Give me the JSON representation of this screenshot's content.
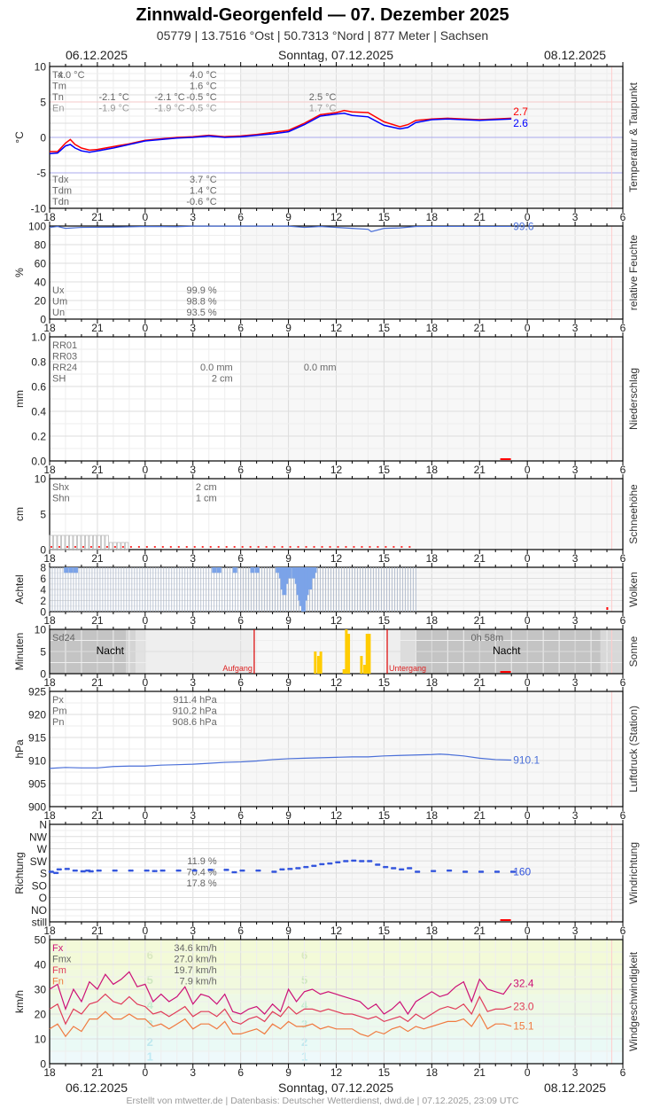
{
  "header": {
    "title": "Zinnwald-Georgenfeld  —  07. Dezember 2025",
    "subtitle": "05779  |  13.7516 °Ost  |  50.7313 °Nord  |  877 Meter  |  Sachsen"
  },
  "dates": {
    "left": "06.12.2025",
    "center": "Sonntag, 07.12.2025",
    "right": "08.12.2025"
  },
  "footer": "Erstellt von mtwetter.de | Datenbasis: Deutscher Wetterdienst, dwd.de | 07.12.2025, 23:09 UTC",
  "axis": {
    "x_ticks": [
      "18",
      "21",
      "0",
      "3",
      "6",
      "9",
      "12",
      "15",
      "18",
      "21",
      "0",
      "3",
      "6"
    ],
    "hours_span": 36,
    "night_left_end_h": 6,
    "night_right_start_h": 30,
    "now_h": 29.3
  },
  "colors": {
    "temp": "#ff0000",
    "dew": "#0000ff",
    "humidity": "#4a6fd8",
    "pressure": "#4a6fd8",
    "wind_dir": "#3355dd",
    "gust": "#cc1177",
    "wind_mean": "#e03c5a",
    "wind_min": "#f07a40",
    "clouds": "#7ba3e8",
    "sun": "#ffcc00",
    "marker": "#ff0000",
    "label_gray": "#666666"
  },
  "chart_data": [
    {
      "id": "temperature",
      "type": "line",
      "title": "Temperatur & Taupunkt",
      "ylabel": "°C",
      "ylim": [
        -10,
        10
      ],
      "yticks": [
        "10",
        "5",
        "0",
        "-5",
        "-10"
      ],
      "x": [
        18,
        18.5,
        19,
        19.3,
        19.6,
        20,
        20.5,
        21,
        22,
        23,
        0,
        1,
        2,
        3,
        4,
        5,
        6,
        7,
        8,
        9,
        10,
        11,
        12,
        12.5,
        13,
        14,
        15,
        16,
        16.5,
        17,
        18,
        19,
        20,
        21,
        22,
        23
      ],
      "series": [
        {
          "name": "Temperatur",
          "color": "#ff0000",
          "values": [
            -2.0,
            -2.0,
            -0.8,
            -0.3,
            -1.0,
            -1.5,
            -1.8,
            -1.7,
            -1.3,
            -0.9,
            -0.4,
            -0.2,
            0.0,
            0.1,
            0.3,
            0.1,
            0.2,
            0.4,
            0.7,
            1.0,
            2.0,
            3.2,
            3.5,
            3.8,
            3.6,
            3.5,
            2.2,
            1.5,
            1.8,
            2.4,
            2.6,
            2.7,
            2.6,
            2.5,
            2.6,
            2.7
          ]
        },
        {
          "name": "Taupunkt",
          "color": "#0000ff",
          "values": [
            -2.3,
            -2.2,
            -1.2,
            -1.0,
            -1.5,
            -1.9,
            -2.1,
            -1.9,
            -1.5,
            -1.0,
            -0.5,
            -0.3,
            -0.1,
            0.0,
            0.2,
            0.0,
            0.1,
            0.3,
            0.5,
            0.8,
            1.8,
            3.0,
            3.3,
            3.4,
            3.1,
            2.9,
            1.7,
            1.2,
            1.4,
            2.1,
            2.5,
            2.6,
            2.5,
            2.4,
            2.5,
            2.6
          ]
        }
      ],
      "current": [
        {
          "label": "2.7",
          "color": "#ff0000"
        },
        {
          "label": "2.6",
          "color": "#0000ff"
        }
      ],
      "legend_top": [
        "Tx",
        "Tm",
        "Tn",
        "En"
      ],
      "legend_bottom": [
        "Tdx",
        "Tdm",
        "Tdn"
      ],
      "annotations": [
        {
          "text": "-2.1 °C",
          "h": 5,
          "row": 2
        },
        {
          "text": "-1.9 °C",
          "h": 5,
          "row": 3
        },
        {
          "text": "-2.1 °C",
          "h": 8.5,
          "row": 2
        },
        {
          "text": "-1.9 °C",
          "h": 8.5,
          "row": 3
        },
        {
          "text": "4.0 °C",
          "h": 20.2,
          "row": 0
        },
        {
          "text": "4.0 °C",
          "h": 28.5,
          "row": 0
        },
        {
          "text": "1.6 °C",
          "h": 28.5,
          "row": 1
        },
        {
          "text": "-0.5 °C",
          "h": 28.5,
          "row": 2
        },
        {
          "text": "-0.5 °C",
          "h": 28.5,
          "row": 3
        },
        {
          "text": "2.5 °C",
          "h": 36,
          "row": 2
        },
        {
          "text": "1.7 °C",
          "h": 36,
          "row": 3
        },
        {
          "text": "3.7 °C",
          "h": 28.5,
          "row": 9
        },
        {
          "text": "1.4 °C",
          "h": 28.5,
          "row": 10
        },
        {
          "text": "-0.6 °C",
          "h": 28.5,
          "row": 11
        }
      ]
    },
    {
      "id": "humidity",
      "type": "line",
      "title": "relative Feuchte",
      "ylabel": "%",
      "ylim": [
        0,
        100
      ],
      "yticks": [
        "100",
        "80",
        "60",
        "40",
        "20",
        "0"
      ],
      "x": [
        18,
        18.5,
        19,
        20,
        22,
        0,
        2,
        3,
        6,
        9,
        10,
        11,
        12,
        13,
        14,
        14.2,
        15,
        16,
        17,
        18,
        20,
        22,
        23
      ],
      "series": [
        {
          "name": "Feuchte",
          "color": "#4a6fd8",
          "values": [
            98.5,
            99.5,
            97.5,
            98.5,
            98.8,
            99.5,
            99.3,
            99.9,
            99.9,
            99.9,
            98.5,
            99.5,
            98.5,
            97.5,
            96.5,
            94,
            97.5,
            98,
            99.5,
            99.6,
            99.6,
            99.6,
            99.6
          ]
        }
      ],
      "current": [
        {
          "label": "99.6",
          "color": "#4a6fd8"
        }
      ],
      "legend_bottom": [
        "Ux",
        "Um",
        "Un"
      ],
      "annotations": [
        {
          "text": "99.9 %",
          "h": 28.5,
          "row": 0
        },
        {
          "text": "98.8 %",
          "h": 28.5,
          "row": 1
        },
        {
          "text": "93.5 %",
          "h": 28.5,
          "row": 2
        }
      ]
    },
    {
      "id": "precipitation",
      "type": "bar",
      "title": "Niederschlag",
      "ylabel": "mm",
      "ylim": [
        0,
        1.0
      ],
      "yticks": [
        "1.0",
        "0.8",
        "0.6",
        "0.4",
        "0.2",
        "0.0"
      ],
      "values": [],
      "legend_top": [
        "RR01",
        "RR03",
        "RR24",
        "SH"
      ],
      "annotations": [
        {
          "text": "0.0 mm",
          "h": 11.5,
          "row": 2
        },
        {
          "text": "2 cm",
          "h": 11.5,
          "row": 3
        },
        {
          "text": "0.0 mm",
          "h": 36,
          "row": 2
        }
      ]
    },
    {
      "id": "snow_depth",
      "type": "bar",
      "title": "Schneehöhe",
      "ylabel": "cm",
      "ylim": [
        0,
        10
      ],
      "yticks": [
        "10",
        "5",
        "0"
      ],
      "values_note": "2 cm from 18h until 21:45, then 1 cm until 23h",
      "segments": [
        {
          "from_h": 18,
          "to_h": 21.75,
          "value": 2
        },
        {
          "from_h": 21.75,
          "to_h": 23,
          "value": 1
        }
      ],
      "legend_top": [
        "Shx",
        "Shn"
      ],
      "annotations": [
        {
          "text": "2 cm",
          "h": 28.5,
          "row": 0
        },
        {
          "text": "1 cm",
          "h": 28.5,
          "row": 1
        }
      ]
    },
    {
      "id": "clouds",
      "type": "bar",
      "title": "Wolken",
      "ylabel": "Achtel",
      "ylim": [
        0,
        8
      ],
      "yticks": [
        "8",
        "6",
        "4",
        "2",
        "0"
      ],
      "note": "8/8 overcast for most of the period; values in eighths, gaps (blue) show breaks",
      "breaks": [
        {
          "h": 18.9,
          "value": 7
        },
        {
          "h": 19.2,
          "value": 7
        },
        {
          "h": 19.5,
          "value": 7
        },
        {
          "h": 28.2,
          "value": 7
        },
        {
          "h": 28.5,
          "value": 7
        },
        {
          "h": 29.5,
          "value": 7
        },
        {
          "h": 30.6,
          "value": 7
        },
        {
          "h": 30.9,
          "value": 7
        },
        {
          "h": 32.2,
          "value": 7
        },
        {
          "h": 32.4,
          "value": 6
        },
        {
          "h": 32.5,
          "value": 4
        },
        {
          "h": 32.6,
          "value": 3
        },
        {
          "h": 32.7,
          "value": 5
        },
        {
          "h": 32.9,
          "value": 6
        },
        {
          "h": 33.2,
          "value": 6
        },
        {
          "h": 33.4,
          "value": 5
        },
        {
          "h": 33.5,
          "value": 3
        },
        {
          "h": 33.6,
          "value": 2
        },
        {
          "h": 33.7,
          "value": 1
        },
        {
          "h": 33.8,
          "value": 0
        },
        {
          "h": 33.9,
          "value": 2
        },
        {
          "h": 34.0,
          "value": 3
        },
        {
          "h": 34.2,
          "value": 4
        },
        {
          "h": 34.4,
          "value": 6
        },
        {
          "h": 34.5,
          "value": 7
        }
      ]
    },
    {
      "id": "sunshine",
      "type": "bar",
      "title": "Sonne",
      "ylabel": "Minuten",
      "ylim": [
        0,
        10
      ],
      "yticks": [
        "10",
        "5",
        "0"
      ],
      "x": [
        10.6,
        10.8,
        10.95,
        12.4,
        12.55,
        12.7,
        13.5,
        13.7,
        13.85,
        14.0
      ],
      "values": [
        5,
        4,
        5,
        1,
        10,
        9,
        4,
        2,
        9,
        9
      ],
      "sunrise_h": 6.85,
      "sunset_h": 15.2,
      "labels": {
        "night": "Nacht",
        "sunrise": "Aufgang",
        "sunset": "Untergang",
        "sd24": "Sd24",
        "sd24_value": "0h 58m"
      }
    },
    {
      "id": "pressure",
      "type": "line",
      "title": "Luftdruck (Station)",
      "ylabel": "hPa",
      "ylim": [
        900,
        925
      ],
      "yticks": [
        "925",
        "920",
        "915",
        "910",
        "905",
        "900"
      ],
      "x": [
        18,
        19,
        20,
        21,
        22,
        23,
        0,
        1,
        2,
        3,
        4,
        5,
        6,
        7,
        8,
        9,
        10,
        11,
        12,
        13,
        14,
        15,
        16,
        17,
        18,
        18.5,
        19,
        20,
        21,
        22,
        23
      ],
      "series": [
        {
          "name": "Luftdruck",
          "color": "#4a6fd8",
          "values": [
            908.3,
            908.5,
            908.4,
            908.4,
            908.7,
            908.8,
            908.8,
            909.0,
            909.1,
            909.2,
            909.4,
            909.6,
            909.7,
            909.9,
            910.2,
            910.4,
            910.5,
            910.6,
            910.7,
            910.8,
            910.8,
            911.0,
            911.1,
            911.2,
            911.3,
            911.4,
            911.3,
            911.0,
            910.5,
            910.2,
            910.1
          ]
        }
      ],
      "current": [
        {
          "label": "910.1",
          "color": "#4a6fd8"
        }
      ],
      "legend_top": [
        "Px",
        "Pm",
        "Pn"
      ],
      "annotations": [
        {
          "text": "911.4 hPa",
          "h": 28.5,
          "row": 0
        },
        {
          "text": "910.2 hPa",
          "h": 28.5,
          "row": 1
        },
        {
          "text": "908.6 hPa",
          "h": 28.5,
          "row": 2
        }
      ]
    },
    {
      "id": "wind_direction",
      "type": "scatter",
      "title": "Windrichtung",
      "ylabel": "Richtung",
      "categories": [
        "N",
        "NW",
        "W",
        "SW",
        "S",
        "SO",
        "O",
        "NO",
        "still"
      ],
      "y_note": "degrees mapped: N=360 top, NW=315, W=270, SW=225, S=180, SO=135, O=90, NO=45, still=0",
      "x": [
        18,
        18.3,
        18.5,
        19,
        19.5,
        20,
        20.3,
        20.5,
        21,
        22,
        23,
        0,
        0.5,
        1,
        2,
        3,
        4,
        5,
        5.5,
        6,
        7,
        8,
        8.5,
        9,
        9.5,
        10,
        10.5,
        11,
        11.5,
        12,
        12.5,
        13,
        13.5,
        14,
        14.5,
        15,
        15.5,
        16,
        16.5,
        17,
        18,
        19,
        20,
        21,
        22,
        23
      ],
      "values": [
        160,
        155,
        170,
        172,
        165,
        162,
        165,
        162,
        165,
        165,
        165,
        165,
        163,
        165,
        165,
        165,
        168,
        168,
        158,
        165,
        165,
        160,
        170,
        172,
        175,
        180,
        185,
        192,
        195,
        200,
        205,
        207,
        205,
        205,
        190,
        180,
        175,
        170,
        175,
        160,
        163,
        165,
        160,
        160,
        160,
        160
      ],
      "current": [
        {
          "label": "160",
          "color": "#3355dd"
        }
      ],
      "annotations": [
        {
          "text": "11.9 %",
          "h": 28.5,
          "row": 0
        },
        {
          "text": "70.4 %",
          "h": 28.5,
          "row": 1
        },
        {
          "text": "17.8 %",
          "h": 28.5,
          "row": 2
        }
      ]
    },
    {
      "id": "wind_speed",
      "type": "line",
      "title": "Windgeschwindigkeit",
      "ylabel": "km/h",
      "ylim": [
        0,
        50
      ],
      "yticks": [
        "50",
        "40",
        "30",
        "20",
        "10",
        "0"
      ],
      "beaufort_labels": [
        "6",
        "5",
        "4",
        "3",
        "2",
        "1"
      ],
      "x": [
        18,
        18.5,
        19,
        19.5,
        20,
        20.5,
        21,
        21.5,
        22,
        22.5,
        23,
        23.5,
        0,
        0.5,
        1,
        1.5,
        2,
        2.5,
        3,
        3.5,
        4,
        4.5,
        5,
        5.5,
        6,
        6.5,
        7,
        7.5,
        8,
        8.5,
        9,
        9.5,
        10,
        10.5,
        11,
        11.5,
        12,
        12.5,
        13,
        13.5,
        14,
        14.5,
        15,
        15.5,
        16,
        16.5,
        17,
        17.5,
        18,
        18.5,
        19,
        19.5,
        20,
        20.5,
        21,
        21.5,
        22,
        22.5,
        23
      ],
      "series": [
        {
          "name": "Fx",
          "color": "#cc1177",
          "values": [
            30,
            32,
            22,
            30,
            25,
            33,
            30,
            36,
            32,
            34,
            37,
            31,
            32,
            25,
            28,
            25,
            27,
            31,
            24,
            28,
            27,
            24,
            28,
            21,
            20,
            22,
            23,
            20,
            24,
            21,
            30,
            25,
            29,
            30,
            28,
            29,
            28,
            27,
            26,
            25,
            22,
            24,
            20,
            22,
            25,
            20,
            25,
            27,
            29,
            27,
            28,
            31,
            33,
            25,
            34,
            30,
            29,
            28,
            32.4
          ]
        },
        {
          "name": "Fm",
          "color": "#e03c5a",
          "values": [
            22,
            24,
            16,
            22,
            20,
            24,
            25,
            28,
            25,
            24,
            27,
            24,
            23,
            20,
            21,
            19,
            21,
            23,
            19,
            21,
            21,
            19,
            22,
            17,
            16,
            18,
            19,
            17,
            21,
            19,
            23,
            20,
            22,
            22,
            21,
            22,
            21,
            20,
            20,
            19,
            18,
            19,
            17,
            18,
            19,
            17,
            20,
            18,
            20,
            22,
            23,
            22,
            24,
            20,
            27,
            21,
            22,
            22,
            23.0
          ]
        },
        {
          "name": "Fn",
          "color": "#f07a40",
          "values": [
            14,
            16,
            11,
            15,
            13,
            18,
            18,
            21,
            18,
            18,
            20,
            18,
            18,
            15,
            16,
            14,
            16,
            18,
            14,
            16,
            16,
            14,
            17,
            12,
            12,
            13,
            14,
            12,
            16,
            14,
            17,
            15,
            15,
            16,
            14,
            15,
            14,
            14,
            14,
            12,
            11,
            13,
            12,
            14,
            15,
            13,
            15,
            14,
            15,
            16,
            17,
            17,
            18,
            15,
            20,
            14,
            16,
            16,
            15.1
          ]
        }
      ],
      "current": [
        {
          "label": "32.4",
          "color": "#cc1177"
        },
        {
          "label": "23.0",
          "color": "#e03c5a"
        },
        {
          "label": "15.1",
          "color": "#f07a40"
        }
      ],
      "legend_top": [
        {
          "label": "Fx",
          "color": "#cc1177"
        },
        {
          "label": "Fmx",
          "color": "#666666"
        },
        {
          "label": "Fm",
          "color": "#e03c5a"
        },
        {
          "label": "Fn",
          "color": "#f07a40"
        }
      ],
      "annotations": [
        {
          "text": "34.6 km/h",
          "h": 28.5,
          "row": 0
        },
        {
          "text": "27.0 km/h",
          "h": 28.5,
          "row": 1
        },
        {
          "text": "19.7 km/h",
          "h": 28.5,
          "row": 2
        },
        {
          "text": "7.9 km/h",
          "h": 28.5,
          "row": 3
        }
      ]
    }
  ]
}
